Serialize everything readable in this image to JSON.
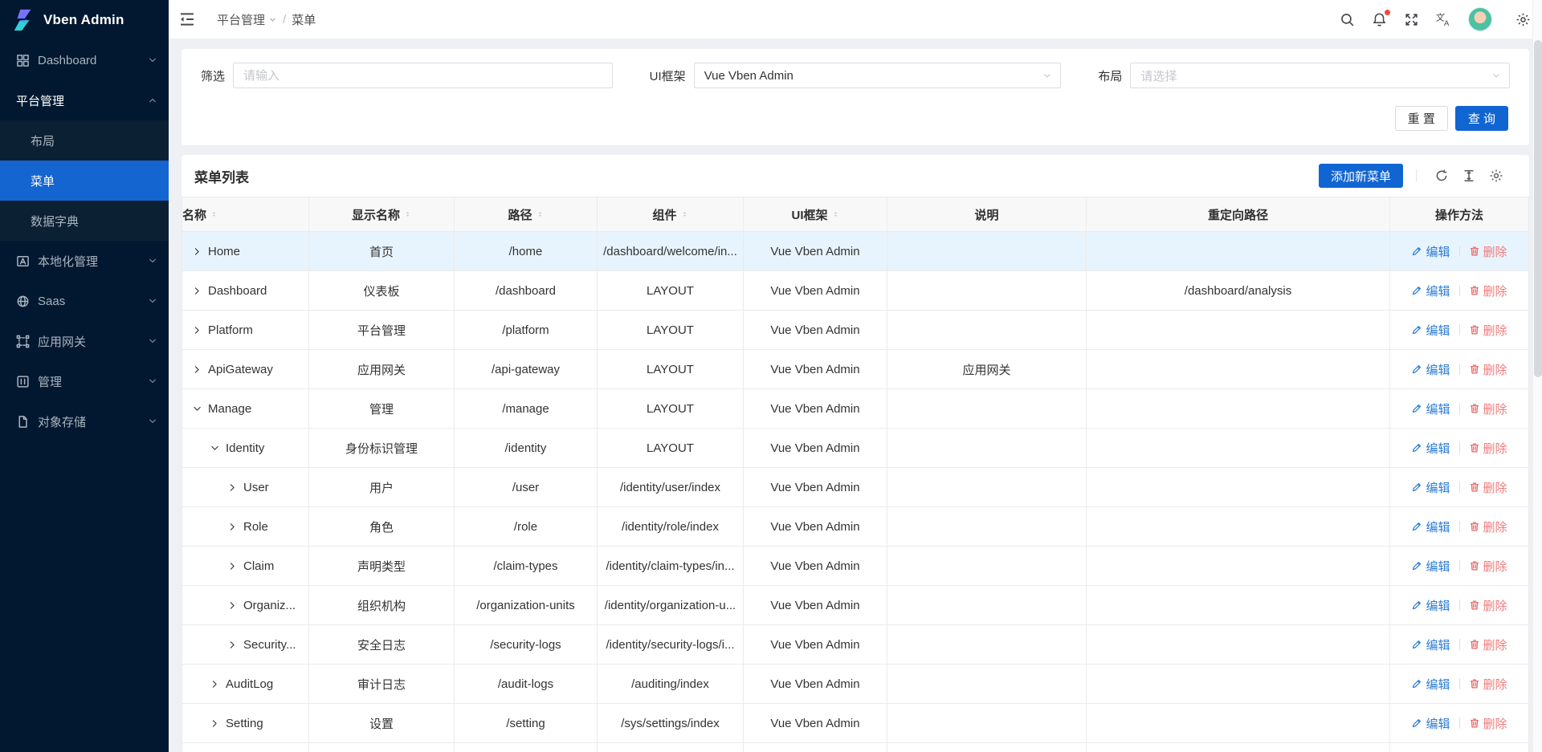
{
  "app": {
    "name": "Vben Admin"
  },
  "colors": {
    "primary": "#1165d2",
    "sidebar_bg": "#021830",
    "submenu_bg": "#0c2033",
    "selected_menu": "#1565d0",
    "row_highlight": "#e8f4fd",
    "edit_link": "#2a7cd2",
    "delete_link": "#ee7b7b",
    "badge": "#f5483b"
  },
  "sidebar": {
    "logo_text": "Vben Admin",
    "items": [
      {
        "label": "Dashboard",
        "icon": "dashboard-icon",
        "chevron": "down",
        "type": "parent"
      },
      {
        "label": "平台管理",
        "icon": "",
        "chevron": "up",
        "type": "parent",
        "active": true
      },
      {
        "label": "布局",
        "type": "sub"
      },
      {
        "label": "菜单",
        "type": "sub",
        "selected": true
      },
      {
        "label": "数据字典",
        "type": "sub"
      },
      {
        "label": "本地化管理",
        "icon": "localization-icon",
        "chevron": "down",
        "type": "parent"
      },
      {
        "label": "Saas",
        "icon": "saas-icon",
        "chevron": "down",
        "type": "parent"
      },
      {
        "label": "应用网关",
        "icon": "gateway-icon",
        "chevron": "down",
        "type": "parent"
      },
      {
        "label": "管理",
        "icon": "manage-icon",
        "chevron": "down",
        "type": "parent"
      },
      {
        "label": "对象存储",
        "icon": "storage-icon",
        "chevron": "down",
        "type": "parent"
      }
    ]
  },
  "header": {
    "breadcrumb": {
      "parent": "平台管理",
      "separator": "/",
      "current": "菜单"
    },
    "icons": [
      "search-icon",
      "bell-icon",
      "fullscreen-icon",
      "translate-icon",
      "avatar",
      "settings-icon"
    ],
    "notification_badge": true
  },
  "filters": {
    "filter_label": "筛选",
    "filter_placeholder": "请输入",
    "framework_label": "UI框架",
    "framework_value": "Vue Vben Admin",
    "layout_label": "布局",
    "layout_placeholder": "请选择",
    "reset_label": "重 置",
    "query_label": "查 询"
  },
  "table_card": {
    "title": "菜单列表",
    "add_button": "添加新菜单",
    "toolbar_icons": [
      "refresh-icon",
      "row-height-icon",
      "gear-icon"
    ],
    "actions": {
      "edit": "编辑",
      "delete": "删除"
    },
    "columns": [
      {
        "label": "名称",
        "sortable": true,
        "align": "left"
      },
      {
        "label": "显示名称",
        "sortable": true
      },
      {
        "label": "路径",
        "sortable": true
      },
      {
        "label": "组件",
        "sortable": true
      },
      {
        "label": "UI框架",
        "sortable": true
      },
      {
        "label": "说明",
        "sortable": false
      },
      {
        "label": "重定向路径",
        "sortable": false
      },
      {
        "label": "操作方法",
        "sortable": false
      }
    ],
    "rows": [
      {
        "name": "Home",
        "indent": 0,
        "chevron": "right",
        "display": "首页",
        "path": "/home",
        "component": "/dashboard/welcome/in...",
        "framework": "Vue Vben Admin",
        "description": "",
        "redirect": "",
        "highlight": true
      },
      {
        "name": "Dashboard",
        "indent": 0,
        "chevron": "right",
        "display": "仪表板",
        "path": "/dashboard",
        "component": "LAYOUT",
        "framework": "Vue Vben Admin",
        "description": "",
        "redirect": "/dashboard/analysis",
        "highlight": false
      },
      {
        "name": "Platform",
        "indent": 0,
        "chevron": "right",
        "display": "平台管理",
        "path": "/platform",
        "component": "LAYOUT",
        "framework": "Vue Vben Admin",
        "description": "",
        "redirect": "",
        "highlight": false
      },
      {
        "name": "ApiGateway",
        "indent": 0,
        "chevron": "right",
        "display": "应用网关",
        "path": "/api-gateway",
        "component": "LAYOUT",
        "framework": "Vue Vben Admin",
        "description": "应用网关",
        "redirect": "",
        "highlight": false
      },
      {
        "name": "Manage",
        "indent": 0,
        "chevron": "down",
        "display": "管理",
        "path": "/manage",
        "component": "LAYOUT",
        "framework": "Vue Vben Admin",
        "description": "",
        "redirect": "",
        "highlight": false
      },
      {
        "name": "Identity",
        "indent": 1,
        "chevron": "down",
        "display": "身份标识管理",
        "path": "/identity",
        "component": "LAYOUT",
        "framework": "Vue Vben Admin",
        "description": "",
        "redirect": "",
        "highlight": false
      },
      {
        "name": "User",
        "indent": 2,
        "chevron": "right",
        "display": "用户",
        "path": "/user",
        "component": "/identity/user/index",
        "framework": "Vue Vben Admin",
        "description": "",
        "redirect": "",
        "highlight": false
      },
      {
        "name": "Role",
        "indent": 2,
        "chevron": "right",
        "display": "角色",
        "path": "/role",
        "component": "/identity/role/index",
        "framework": "Vue Vben Admin",
        "description": "",
        "redirect": "",
        "highlight": false
      },
      {
        "name": "Claim",
        "indent": 2,
        "chevron": "right",
        "display": "声明类型",
        "path": "/claim-types",
        "component": "/identity/claim-types/in...",
        "framework": "Vue Vben Admin",
        "description": "",
        "redirect": "",
        "highlight": false
      },
      {
        "name": "Organiz...",
        "indent": 2,
        "chevron": "right",
        "display": "组织机构",
        "path": "/organization-units",
        "component": "/identity/organization-u...",
        "framework": "Vue Vben Admin",
        "description": "",
        "redirect": "",
        "highlight": false
      },
      {
        "name": "Security...",
        "indent": 2,
        "chevron": "right",
        "display": "安全日志",
        "path": "/security-logs",
        "component": "/identity/security-logs/i...",
        "framework": "Vue Vben Admin",
        "description": "",
        "redirect": "",
        "highlight": false
      },
      {
        "name": "AuditLog",
        "indent": 1,
        "chevron": "right",
        "display": "审计日志",
        "path": "/audit-logs",
        "component": "/auditing/index",
        "framework": "Vue Vben Admin",
        "description": "",
        "redirect": "",
        "highlight": false
      },
      {
        "name": "Setting",
        "indent": 1,
        "chevron": "right",
        "display": "设置",
        "path": "/setting",
        "component": "/sys/settings/index",
        "framework": "Vue Vben Admin",
        "description": "",
        "redirect": "",
        "highlight": false
      }
    ]
  }
}
